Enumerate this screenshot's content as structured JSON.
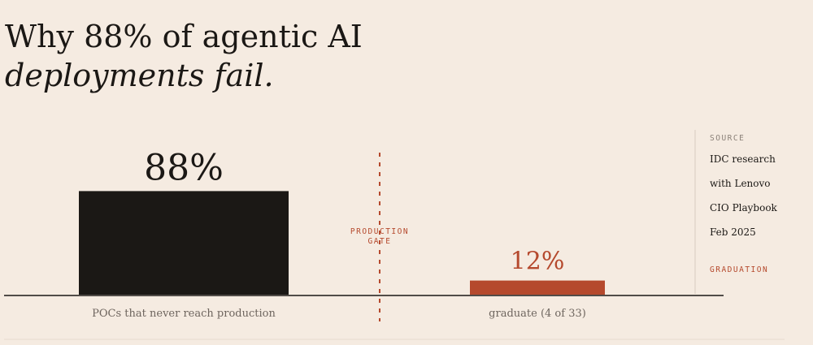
{
  "chart_data": {
    "type": "bar",
    "title": "Why 88% of agentic AI",
    "title_emphasis": "deployments fail.",
    "categories": [
      "POCs that never reach production",
      "graduate (4 of 33)"
    ],
    "values": [
      88,
      12
    ],
    "value_labels": [
      "88%",
      "12%"
    ],
    "colors": [
      "#1b1815",
      "#b5492d"
    ],
    "gate_label": [
      "PRODUCTION",
      "GATE"
    ],
    "source_heading": "SOURCE",
    "source_lines": [
      "IDC research",
      "with Lenovo",
      "CIO Playbook",
      "Feb 2025"
    ],
    "source_tag": "GRADUATION"
  }
}
